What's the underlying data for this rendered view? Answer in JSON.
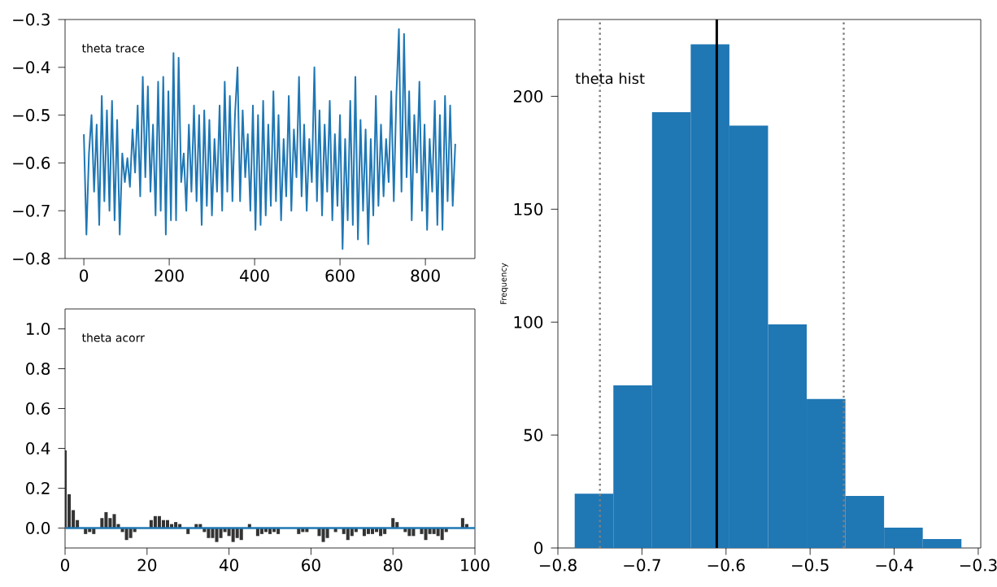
{
  "chart_data": [
    {
      "type": "line",
      "annotations": [
        "theta trace"
      ],
      "color": "#1f77b4",
      "xlim": [
        -44,
        916
      ],
      "ylim": [
        -0.8,
        -0.3
      ],
      "xticks": [
        0,
        200,
        400,
        600,
        800
      ],
      "yticks": [
        {
          "value": -0.8,
          "label": "−0.8"
        },
        {
          "value": -0.7,
          "label": "−0.7"
        },
        {
          "value": -0.6,
          "label": "−0.6"
        },
        {
          "value": -0.5,
          "label": "−0.5"
        },
        {
          "value": -0.4,
          "label": "−0.4"
        },
        {
          "value": -0.3,
          "label": "−0.3"
        }
      ],
      "x": [
        0,
        6,
        12,
        18,
        24,
        30,
        36,
        42,
        48,
        54,
        60,
        66,
        72,
        78,
        84,
        90,
        96,
        102,
        108,
        114,
        120,
        126,
        132,
        138,
        144,
        150,
        156,
        162,
        168,
        174,
        180,
        186,
        192,
        198,
        204,
        210,
        216,
        222,
        228,
        234,
        240,
        246,
        252,
        258,
        264,
        270,
        276,
        282,
        288,
        294,
        300,
        306,
        312,
        318,
        324,
        330,
        336,
        342,
        348,
        354,
        360,
        366,
        372,
        378,
        384,
        390,
        396,
        402,
        408,
        414,
        420,
        426,
        432,
        438,
        444,
        450,
        456,
        462,
        468,
        474,
        480,
        486,
        492,
        498,
        504,
        510,
        516,
        522,
        528,
        534,
        540,
        546,
        552,
        558,
        564,
        570,
        576,
        582,
        588,
        594,
        600,
        606,
        612,
        618,
        624,
        630,
        636,
        642,
        648,
        654,
        660,
        666,
        672,
        678,
        684,
        690,
        696,
        702,
        708,
        714,
        720,
        726,
        732,
        738,
        744,
        750,
        756,
        762,
        768,
        774,
        780,
        786,
        792,
        798,
        804,
        810,
        816,
        822,
        828,
        834,
        840,
        846,
        852,
        858,
        864,
        870
      ],
      "values": [
        -0.54,
        -0.75,
        -0.58,
        -0.5,
        -0.66,
        -0.52,
        -0.73,
        -0.46,
        -0.68,
        -0.49,
        -0.7,
        -0.47,
        -0.72,
        -0.51,
        -0.75,
        -0.58,
        -0.64,
        -0.59,
        -0.65,
        -0.53,
        -0.62,
        -0.48,
        -0.67,
        -0.42,
        -0.63,
        -0.44,
        -0.66,
        -0.52,
        -0.71,
        -0.43,
        -0.7,
        -0.42,
        -0.75,
        -0.45,
        -0.72,
        -0.37,
        -0.72,
        -0.38,
        -0.64,
        -0.58,
        -0.7,
        -0.52,
        -0.66,
        -0.48,
        -0.68,
        -0.5,
        -0.73,
        -0.49,
        -0.69,
        -0.51,
        -0.71,
        -0.55,
        -0.66,
        -0.48,
        -0.7,
        -0.43,
        -0.66,
        -0.46,
        -0.68,
        -0.5,
        -0.4,
        -0.68,
        -0.49,
        -0.63,
        -0.54,
        -0.7,
        -0.48,
        -0.74,
        -0.5,
        -0.73,
        -0.47,
        -0.71,
        -0.52,
        -0.69,
        -0.45,
        -0.68,
        -0.5,
        -0.72,
        -0.55,
        -0.67,
        -0.46,
        -0.7,
        -0.53,
        -0.63,
        -0.42,
        -0.67,
        -0.52,
        -0.7,
        -0.55,
        -0.64,
        -0.4,
        -0.68,
        -0.49,
        -0.71,
        -0.52,
        -0.66,
        -0.47,
        -0.72,
        -0.54,
        -0.69,
        -0.5,
        -0.78,
        -0.55,
        -0.72,
        -0.47,
        -0.73,
        -0.42,
        -0.76,
        -0.51,
        -0.7,
        -0.53,
        -0.77,
        -0.55,
        -0.71,
        -0.46,
        -0.69,
        -0.52,
        -0.67,
        -0.55,
        -0.64,
        -0.45,
        -0.68,
        -0.46,
        -0.32,
        -0.66,
        -0.33,
        -0.63,
        -0.45,
        -0.72,
        -0.5,
        -0.62,
        -0.43,
        -0.7,
        -0.52,
        -0.74,
        -0.55,
        -0.66,
        -0.47,
        -0.73,
        -0.5,
        -0.74,
        -0.46,
        -0.68,
        -0.48,
        -0.69,
        -0.56
      ]
    },
    {
      "type": "bar",
      "annotations": [
        "theta acorr"
      ],
      "color": "#333333",
      "xlim": [
        0,
        100
      ],
      "ylim": [
        -0.1,
        1.1
      ],
      "xticks": [
        0,
        20,
        40,
        60,
        80,
        100
      ],
      "yticks": [
        {
          "value": 0,
          "label": "0.0"
        },
        0.2,
        0.4,
        0.6,
        0.8,
        {
          "value": 1,
          "label": "1.0"
        }
      ],
      "ref_lines": [
        {
          "axis": "y",
          "value": 0,
          "color": "#1f77b4"
        }
      ],
      "x": [
        0,
        1,
        2,
        3,
        4,
        5,
        6,
        7,
        8,
        9,
        10,
        11,
        12,
        13,
        14,
        15,
        16,
        17,
        18,
        19,
        20,
        21,
        22,
        23,
        24,
        25,
        26,
        27,
        28,
        29,
        30,
        31,
        32,
        33,
        34,
        35,
        36,
        37,
        38,
        39,
        40,
        41,
        42,
        43,
        44,
        45,
        46,
        47,
        48,
        49,
        50,
        51,
        52,
        53,
        54,
        55,
        56,
        57,
        58,
        59,
        60,
        61,
        62,
        63,
        64,
        65,
        66,
        67,
        68,
        69,
        70,
        71,
        72,
        73,
        74,
        75,
        76,
        77,
        78,
        79,
        80,
        81,
        82,
        83,
        84,
        85,
        86,
        87,
        88,
        89,
        90,
        91,
        92,
        93,
        94,
        95,
        96,
        97,
        98,
        99
      ],
      "values": [
        0.39,
        0.17,
        0.09,
        0.04,
        0.0,
        -0.03,
        -0.02,
        -0.03,
        0.0,
        0.05,
        0.08,
        0.05,
        0.07,
        0.02,
        -0.02,
        -0.06,
        -0.05,
        -0.02,
        null,
        0.0,
        0.0,
        0.04,
        0.06,
        0.06,
        0.04,
        0.04,
        0.02,
        0.03,
        0.02,
        null,
        -0.03,
        0.0,
        0.02,
        0.02,
        -0.02,
        -0.05,
        -0.05,
        -0.07,
        -0.05,
        -0.02,
        -0.04,
        -0.07,
        -0.05,
        -0.06,
        0.0,
        0.02,
        0.0,
        -0.04,
        -0.03,
        -0.02,
        -0.03,
        -0.02,
        -0.03,
        0.0,
        0.0,
        null,
        0.0,
        -0.03,
        -0.02,
        -0.02,
        null,
        0.0,
        -0.04,
        -0.07,
        -0.05,
        0.0,
        -0.02,
        0.0,
        -0.03,
        -0.06,
        -0.04,
        -0.02,
        0.0,
        -0.04,
        -0.03,
        -0.03,
        -0.02,
        -0.04,
        -0.03,
        0.0,
        0.05,
        0.03,
        0.0,
        -0.02,
        -0.04,
        -0.04,
        0.0,
        -0.03,
        -0.06,
        -0.03,
        -0.03,
        -0.04,
        -0.06,
        -0.02,
        null,
        0.0,
        0.0,
        0.05,
        0.02,
        0.0
      ]
    },
    {
      "type": "histogram",
      "annotations": [
        "theta hist"
      ],
      "ylabel": "Frequency",
      "color": "#1f77b4",
      "xlim": [
        -0.8,
        -0.297
      ],
      "ylim": [
        0,
        234
      ],
      "xticks": [
        {
          "value": -0.8,
          "label": "−0.8"
        },
        {
          "value": -0.7,
          "label": "−0.7"
        },
        {
          "value": -0.6,
          "label": "−0.6"
        },
        {
          "value": -0.5,
          "label": "−0.5"
        },
        {
          "value": -0.4,
          "label": "−0.4"
        },
        {
          "value": -0.3,
          "label": "−0.3"
        }
      ],
      "yticks": [
        0,
        50,
        100,
        150,
        200
      ],
      "bins": [
        -0.78,
        -0.734,
        -0.688,
        -0.642,
        -0.596,
        -0.55,
        -0.504,
        -0.458,
        -0.412,
        -0.366,
        -0.32
      ],
      "values": [
        24,
        72,
        193,
        223,
        187,
        99,
        66,
        23,
        9,
        4
      ],
      "ref_lines": [
        {
          "axis": "x",
          "value": -0.611,
          "color": "#000000",
          "line_style": "solid"
        },
        {
          "axis": "x",
          "value": -0.75,
          "color": "#808080",
          "line_style": "dotted"
        },
        {
          "axis": "x",
          "value": -0.46,
          "color": "#808080",
          "line_style": "dotted"
        }
      ]
    }
  ]
}
